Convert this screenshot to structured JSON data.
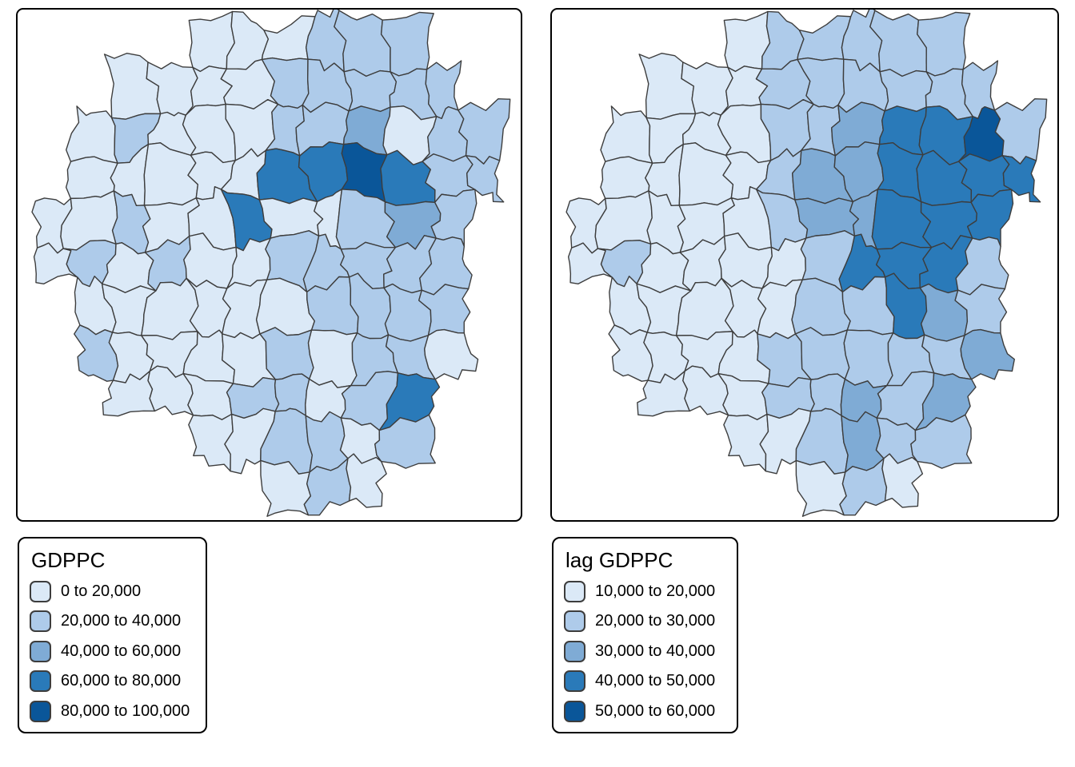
{
  "figure": {
    "background": "#ffffff",
    "panel_border_color": "#000000",
    "county_border_color": "#3d3d3d",
    "palette": [
      "#dbe9f7",
      "#aecbea",
      "#7fabd5",
      "#2a7ab9",
      "#0a5699"
    ]
  },
  "maps": [
    {
      "id": "gdppc",
      "legend": {
        "title": "GDPPC",
        "items": [
          {
            "label": "0 to 20,000",
            "color": "#dbe9f7"
          },
          {
            "label": "20,000 to 40,000",
            "color": "#aecbea"
          },
          {
            "label": "40,000 to 60,000",
            "color": "#7fabd5"
          },
          {
            "label": "60,000 to 80,000",
            "color": "#2a7ab9"
          },
          {
            "label": "80,000 to 100,000",
            "color": "#0a5699"
          }
        ]
      },
      "class_grid": [
        "....111222..",
        "..111122222.",
        ".12111223122",
        ".11111445422",
        "11211411232.",
        "12121122222.",
        ".1111112222.",
        ".2111121221.",
        "..11122124..",
        "....112212..",
        "......121..."
      ]
    },
    {
      "id": "lag-gdppc",
      "legend": {
        "title": "lag GDPPC",
        "items": [
          {
            "label": "10,000 to 20,000",
            "color": "#dbe9f7"
          },
          {
            "label": "20,000 to 30,000",
            "color": "#aecbea"
          },
          {
            "label": "30,000 to 40,000",
            "color": "#7fabd5"
          },
          {
            "label": "40,000 to 50,000",
            "color": "#2a7ab9"
          },
          {
            "label": "50,000 to 60,000",
            "color": "#0a5699"
          }
        ]
      },
      "class_grid": [
        "....122222..",
        "..111222222.",
        ".11112234452",
        ".11112334444",
        "11111233444.",
        "12111124442.",
        ".1111122432.",
        ".1111222223.",
        "..11122323..",
        "....112322..",
        "......121..."
      ]
    }
  ],
  "chart_data": [
    {
      "type": "choropleth",
      "title": "GDPPC",
      "legend_title": "GDPPC",
      "bins": [
        "0 to 20,000",
        "20,000 to 40,000",
        "40,000 to 60,000",
        "60,000 to 80,000",
        "80,000 to 100,000"
      ],
      "bin_colors": [
        "#dbe9f7",
        "#aecbea",
        "#7fabd5",
        "#2a7ab9",
        "#0a5699"
      ],
      "legend_position": "below map, left",
      "pattern": "one 80,000-100,000 county in the north-east center surrounded by 60,000-80,000 counties; one small 60,000-80,000 county mid-map and one in the south-east; scattered 20,000-40,000 counties in the north and east; most western and southern counties 0-20,000"
    },
    {
      "type": "choropleth",
      "title": "lag GDPPC",
      "legend_title": "lag GDPPC",
      "bins": [
        "10,000 to 20,000",
        "20,000 to 30,000",
        "30,000 to 40,000",
        "40,000 to 50,000",
        "50,000 to 60,000"
      ],
      "bin_colors": [
        "#dbe9f7",
        "#aecbea",
        "#7fabd5",
        "#2a7ab9",
        "#0a5699"
      ],
      "legend_position": "below map, right",
      "pattern": "one 50,000-60,000 county in the far north-east with a contiguous cluster of 40,000-50,000 counties around and south of it; 30,000-40,000 counties fringing the cluster and along the south-east; broad 20,000-30,000 band across the north, east and south; western third mostly 10,000-20,000"
    }
  ]
}
